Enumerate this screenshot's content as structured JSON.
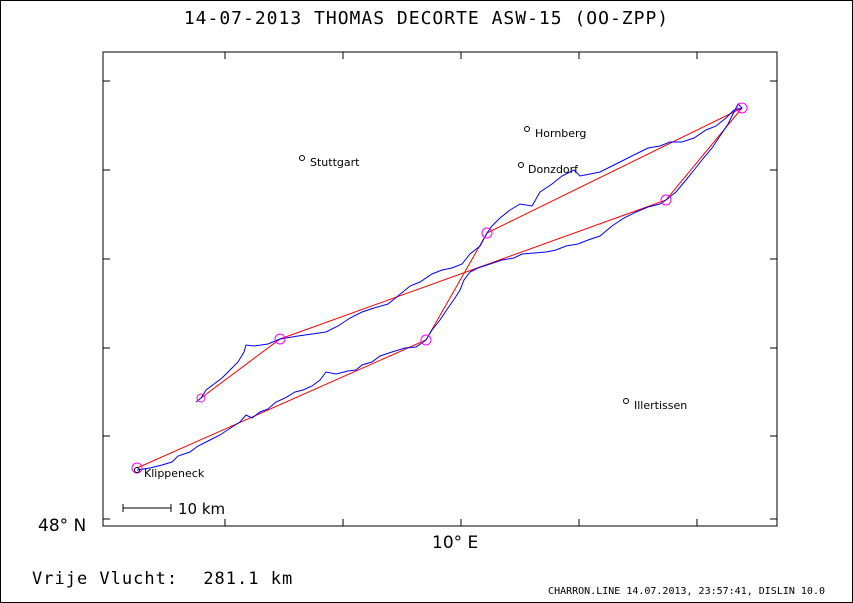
{
  "title": "14-07-2013   THOMAS DECORTE   ASW-15 (OO-ZPP)",
  "axis": {
    "lat_label": "48° N",
    "lon_label": "10° E"
  },
  "places": [
    {
      "name": "Hornberg"
    },
    {
      "name": "Stuttgart"
    },
    {
      "name": "Donzdorf"
    },
    {
      "name": "Illertissen"
    },
    {
      "name": "Klippeneck"
    }
  ],
  "scale_label": "10 km",
  "distance": {
    "label": "Vrije Vlucht:",
    "value": "281.1 km"
  },
  "footer": "CHARRON.LINE 14.07.2013, 23:57:41, DISLIN 10.0",
  "colors": {
    "track": "#0000ff",
    "task": "#ff0000",
    "turnpoint": "#ff00ff",
    "frame": "#000000"
  }
}
